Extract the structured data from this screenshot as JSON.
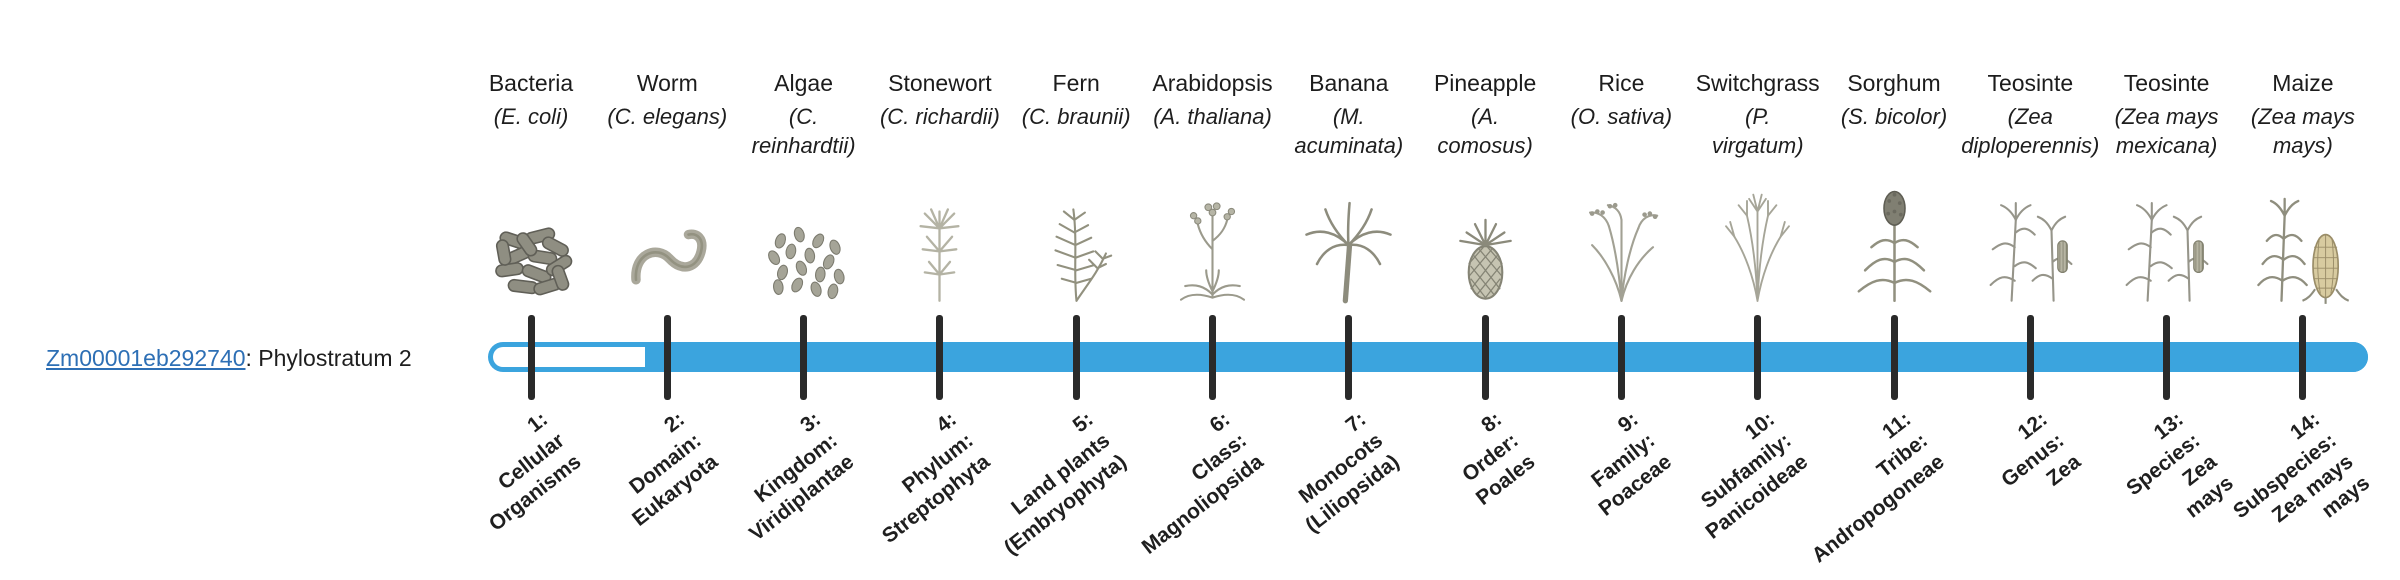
{
  "gene": {
    "id": "Zm00001eb292740",
    "suffix": ": Phylostratum 2",
    "phylostratum": 2,
    "link_color": "#2d6fb5"
  },
  "timeline": {
    "fill_color": "#3ba4de",
    "empty_fill": "#ffffff",
    "tick_color": "#2a2a2a",
    "filled_from_index": 1
  },
  "species": [
    {
      "common": "Bacteria",
      "scientific": "(E. coli)",
      "icon": "bacteria-icon"
    },
    {
      "common": "Worm",
      "scientific": "(C. elegans)",
      "icon": "worm-icon"
    },
    {
      "common": "Algae",
      "scientific": "(C.\nreinhardtii)",
      "icon": "algae-icon"
    },
    {
      "common": "Stonewort",
      "scientific": "(C. richardii)",
      "icon": "stonewort-icon"
    },
    {
      "common": "Fern",
      "scientific": "(C. braunii)",
      "icon": "fern-icon"
    },
    {
      "common": "Arabidopsis",
      "scientific": "(A. thaliana)",
      "icon": "arabidopsis-icon"
    },
    {
      "common": "Banana",
      "scientific": "(M.\nacuminata)",
      "icon": "banana-icon"
    },
    {
      "common": "Pineapple",
      "scientific": "(A.\ncomosus)",
      "icon": "pineapple-icon"
    },
    {
      "common": "Rice",
      "scientific": "(O. sativa)",
      "icon": "rice-icon"
    },
    {
      "common": "Switchgrass",
      "scientific": "(P.\nvirgatum)",
      "icon": "switchgrass-icon"
    },
    {
      "common": "Sorghum",
      "scientific": "(S. bicolor)",
      "icon": "sorghum-icon"
    },
    {
      "common": "Teosinte",
      "scientific": "(Zea\ndiploperennis)",
      "icon": "teosinte-icon"
    },
    {
      "common": "Teosinte",
      "scientific": "(Zea mays\nmexicana)",
      "icon": "teosinte-icon"
    },
    {
      "common": "Maize",
      "scientific": "(Zea mays\nmays)",
      "icon": "maize-icon"
    }
  ],
  "phylostrata": [
    {
      "lines": [
        "1:",
        "Cellular",
        "Organisms"
      ]
    },
    {
      "lines": [
        "2:",
        "Domain:",
        "Eukaryota"
      ]
    },
    {
      "lines": [
        "3:",
        "Kingdom:",
        "Viridiplantae"
      ]
    },
    {
      "lines": [
        "4:",
        "Phylum:",
        "Streptophyta"
      ]
    },
    {
      "lines": [
        "5:",
        "Land plants",
        "(Embryophyta)"
      ]
    },
    {
      "lines": [
        "6:",
        "Class:",
        "Magnoliopsida"
      ]
    },
    {
      "lines": [
        "7:",
        "Monocots",
        "(Liliopsida)"
      ]
    },
    {
      "lines": [
        "8:",
        "Order:",
        "Poales"
      ]
    },
    {
      "lines": [
        "9:",
        "Family:",
        "Poaceae"
      ]
    },
    {
      "lines": [
        "10:",
        "Subfamily:",
        "Panicoideae"
      ]
    },
    {
      "lines": [
        "11:",
        "Tribe:",
        "Andropogoneae"
      ]
    },
    {
      "lines": [
        "12:",
        "Genus:",
        "Zea"
      ]
    },
    {
      "lines": [
        "13:",
        "Species:",
        "Zea",
        "mays"
      ]
    },
    {
      "lines": [
        "14:",
        "Subspecies:",
        "Zea mays",
        "mays"
      ]
    }
  ]
}
